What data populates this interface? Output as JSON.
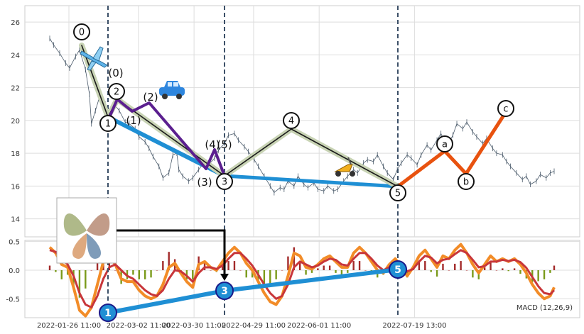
{
  "chart_data": [
    {
      "type": "line",
      "panel": "price",
      "yticks": [
        14,
        16,
        18,
        20,
        22,
        24,
        26
      ],
      "ylim": [
        12.9,
        27.0
      ],
      "grid": true,
      "price_series": {
        "x_days": [
          0,
          2,
          5,
          8,
          10,
          13,
          15,
          18,
          20,
          21,
          23,
          25,
          28,
          30,
          33,
          35,
          38,
          40,
          43,
          45,
          48,
          50,
          52,
          55,
          57,
          60,
          62,
          64,
          65,
          67,
          70,
          72,
          75,
          78,
          80,
          83,
          85,
          88,
          90,
          93,
          95,
          98,
          100,
          103,
          105,
          108,
          111,
          113,
          116,
          118,
          120,
          123,
          125,
          128,
          130,
          133,
          135,
          138,
          140,
          143,
          145,
          148,
          150,
          153,
          155,
          158,
          160,
          163,
          165,
          168,
          170,
          173,
          175,
          177,
          180,
          182,
          185,
          187,
          190,
          192,
          195,
          197,
          200,
          203,
          205,
          208,
          210,
          213,
          215,
          218,
          220,
          223,
          225,
          228,
          230,
          232,
          235,
          238,
          240,
          242,
          245,
          247,
          250,
          252,
          254
        ],
        "y": [
          25.0,
          24.6,
          24.1,
          23.5,
          23.2,
          23.9,
          24.3,
          23.1,
          21.6,
          19.8,
          20.6,
          21.4,
          21.0,
          20.3,
          20.9,
          20.6,
          19.9,
          19.8,
          19.5,
          19.0,
          18.7,
          18.3,
          17.8,
          17.2,
          16.5,
          16.8,
          17.9,
          18.0,
          17.0,
          16.6,
          16.3,
          16.5,
          17.0,
          17.5,
          17.3,
          17.7,
          18.2,
          18.6,
          19.1,
          19.2,
          18.8,
          18.4,
          18.1,
          17.6,
          17.2,
          16.6,
          16.0,
          15.6,
          15.9,
          15.8,
          16.3,
          16.0,
          16.6,
          16.1,
          15.9,
          16.2,
          15.8,
          15.7,
          16.0,
          15.7,
          15.8,
          16.3,
          16.6,
          17.0,
          16.8,
          17.4,
          17.6,
          17.5,
          17.9,
          17.2,
          16.8,
          16.4,
          17.0,
          17.4,
          17.9,
          17.7,
          17.3,
          17.9,
          18.5,
          18.2,
          18.8,
          19.2,
          18.4,
          19.1,
          19.8,
          19.5,
          19.9,
          19.3,
          19.0,
          18.6,
          18.9,
          18.3,
          18.0,
          17.9,
          17.5,
          17.2,
          16.8,
          16.4,
          16.6,
          16.1,
          16.3,
          16.7,
          16.5,
          16.8,
          16.9
        ]
      },
      "wave_labels": [
        "0",
        "1",
        "2",
        "3",
        "4",
        "5",
        "a",
        "b",
        "c"
      ],
      "sub_wave_labels": [
        "(0)",
        "(1)",
        "(2)",
        "(3)",
        "(4)",
        "(5)"
      ]
    },
    {
      "type": "line",
      "panel": "macd",
      "yticks": [
        -0.5,
        0.0,
        0.5
      ],
      "ylim": [
        -0.83,
        0.52
      ],
      "grid": true,
      "annotation": "MACD (12,26,9)",
      "xtick_labels": [
        "2022-01-26 11:00",
        "2022-03-02 11:00",
        "2022-03-30 11:00",
        "2022-04-29 11:00",
        "2022-06-01 11:00",
        "2022-07-19 13:00"
      ],
      "x_days": [
        0,
        3,
        6,
        9,
        12,
        15,
        18,
        21,
        24,
        27,
        30,
        33,
        36,
        39,
        42,
        45,
        48,
        51,
        54,
        57,
        60,
        63,
        66,
        69,
        72,
        75,
        78,
        81,
        84,
        87,
        90,
        93,
        96,
        99,
        102,
        105,
        108,
        111,
        114,
        117,
        120,
        123,
        126,
        129,
        132,
        135,
        138,
        141,
        144,
        147,
        150,
        153,
        156,
        159,
        162,
        165,
        168,
        171,
        174,
        177,
        180,
        183,
        186,
        189,
        192,
        195,
        198,
        201,
        204,
        207,
        210,
        213,
        216,
        219,
        222,
        225,
        228,
        231,
        234,
        237,
        240,
        243,
        246,
        249,
        252,
        254
      ],
      "macd": [
        0.4,
        0.3,
        0.1,
        0.05,
        -0.3,
        -0.7,
        -0.8,
        -0.65,
        -0.25,
        0.15,
        0.25,
        0.1,
        -0.15,
        -0.2,
        -0.2,
        -0.35,
        -0.45,
        -0.5,
        -0.45,
        -0.25,
        0.05,
        0.12,
        -0.05,
        -0.2,
        -0.3,
        0.1,
        0.15,
        0.05,
        0.0,
        0.15,
        0.3,
        0.4,
        0.3,
        0.12,
        0.0,
        -0.2,
        -0.4,
        -0.55,
        -0.6,
        -0.45,
        -0.1,
        0.3,
        0.25,
        0.05,
        0.02,
        0.1,
        0.2,
        0.25,
        0.15,
        0.05,
        0.05,
        0.3,
        0.4,
        0.3,
        0.15,
        0.0,
        -0.05,
        0.1,
        0.2,
        0.05,
        -0.1,
        0.05,
        0.25,
        0.35,
        0.2,
        0.05,
        0.25,
        0.2,
        0.35,
        0.45,
        0.3,
        0.1,
        -0.05,
        0.1,
        0.25,
        0.15,
        0.2,
        0.15,
        0.2,
        0.1,
        -0.05,
        -0.25,
        -0.4,
        -0.5,
        -0.45,
        -0.3
      ],
      "signal": [
        0.35,
        0.32,
        0.2,
        0.1,
        -0.1,
        -0.4,
        -0.6,
        -0.65,
        -0.45,
        -0.15,
        0.05,
        0.1,
        0.0,
        -0.1,
        -0.15,
        -0.25,
        -0.35,
        -0.42,
        -0.45,
        -0.35,
        -0.15,
        0.0,
        -0.02,
        -0.1,
        -0.2,
        -0.05,
        0.05,
        0.05,
        0.02,
        0.08,
        0.2,
        0.3,
        0.3,
        0.2,
        0.08,
        -0.08,
        -0.25,
        -0.4,
        -0.5,
        -0.45,
        -0.25,
        0.05,
        0.15,
        0.1,
        0.05,
        0.08,
        0.15,
        0.2,
        0.18,
        0.1,
        0.08,
        0.2,
        0.3,
        0.3,
        0.2,
        0.08,
        0.0,
        0.05,
        0.12,
        0.08,
        -0.02,
        0.02,
        0.15,
        0.25,
        0.22,
        0.12,
        0.18,
        0.2,
        0.28,
        0.35,
        0.3,
        0.18,
        0.05,
        0.07,
        0.15,
        0.15,
        0.18,
        0.16,
        0.18,
        0.14,
        0.04,
        -0.12,
        -0.28,
        -0.4,
        -0.42,
        -0.35
      ],
      "bubble_labels": [
        "1",
        "3",
        "5"
      ]
    }
  ],
  "colors": {
    "wave_line": "#1a1a1a",
    "wave_halo": "#c8d3b4",
    "trend_blue": "#1f8fd4",
    "sub_wave": "#5b1f8f",
    "correction": "#e8520f",
    "macd_orange": "#f28c28",
    "macd_red": "#c8363a",
    "hist_pos": "#a32a2a",
    "hist_neg": "#7a9a1a",
    "marker_border": "#1a1a8a",
    "vline": "#3c5068",
    "grid": "#dddddd"
  },
  "icons": [
    "airplane-icon",
    "car-icon",
    "scooter-icon",
    "butterfly-thumbnail-icon"
  ]
}
